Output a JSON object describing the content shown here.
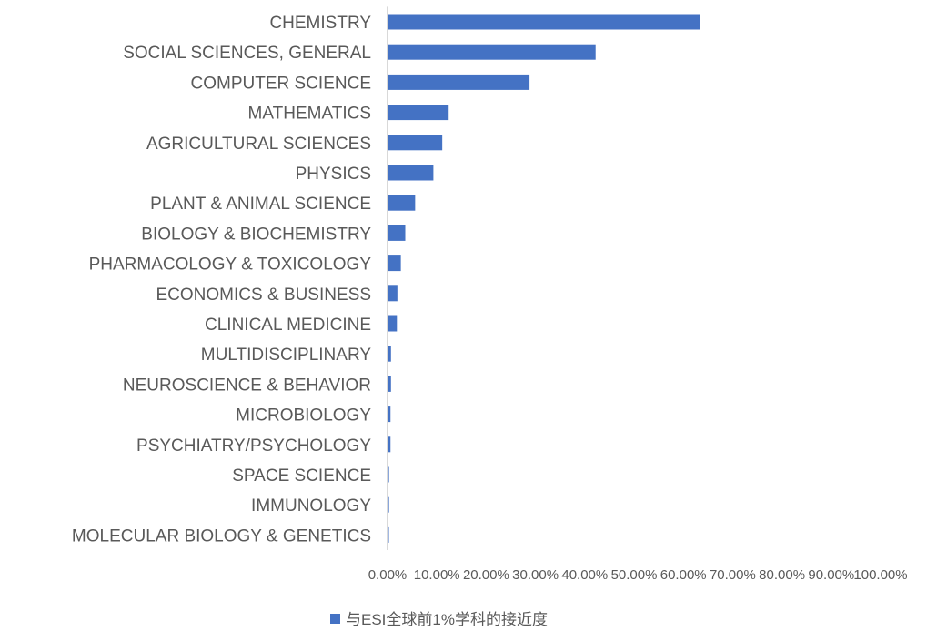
{
  "chart_data": {
    "type": "bar",
    "orientation": "horizontal",
    "categories": [
      "CHEMISTRY",
      "SOCIAL SCIENCES, GENERAL",
      "COMPUTER SCIENCE",
      "MATHEMATICS",
      "AGRICULTURAL SCIENCES",
      "PHYSICS",
      "PLANT & ANIMAL SCIENCE",
      "BIOLOGY & BIOCHEMISTRY",
      "PHARMACOLOGY & TOXICOLOGY",
      "ECONOMICS & BUSINESS",
      "CLINICAL MEDICINE",
      "MULTIDISCIPLINARY",
      "NEUROSCIENCE & BEHAVIOR",
      "MICROBIOLOGY",
      "PSYCHIATRY/PSYCHOLOGY",
      "SPACE SCIENCE",
      "IMMUNOLOGY",
      "MOLECULAR BIOLOGY & GENETICS"
    ],
    "series": [
      {
        "name": "与ESI全球前1%学科的接近度",
        "color": "#4472c4",
        "values": [
          63.3,
          42.2,
          28.8,
          12.4,
          11.1,
          9.3,
          5.6,
          3.6,
          2.7,
          2.0,
          1.9,
          0.7,
          0.7,
          0.6,
          0.6,
          0.3,
          0.3,
          0.2
        ]
      }
    ],
    "xlim": [
      0,
      100
    ],
    "x_ticks": [
      0,
      10,
      20,
      30,
      40,
      50,
      60,
      70,
      80,
      90,
      100
    ],
    "x_tick_labels": [
      "0.00%",
      "10.00%",
      "20.00%",
      "30.00%",
      "40.00%",
      "50.00%",
      "60.00%",
      "70.00%",
      "80.00%",
      "90.00%",
      "100.00%"
    ],
    "title": "",
    "xlabel": "",
    "ylabel": "",
    "grid": false,
    "legend": {
      "position": "bottom",
      "label": "与ESI全球前1%学科的接近度"
    }
  }
}
